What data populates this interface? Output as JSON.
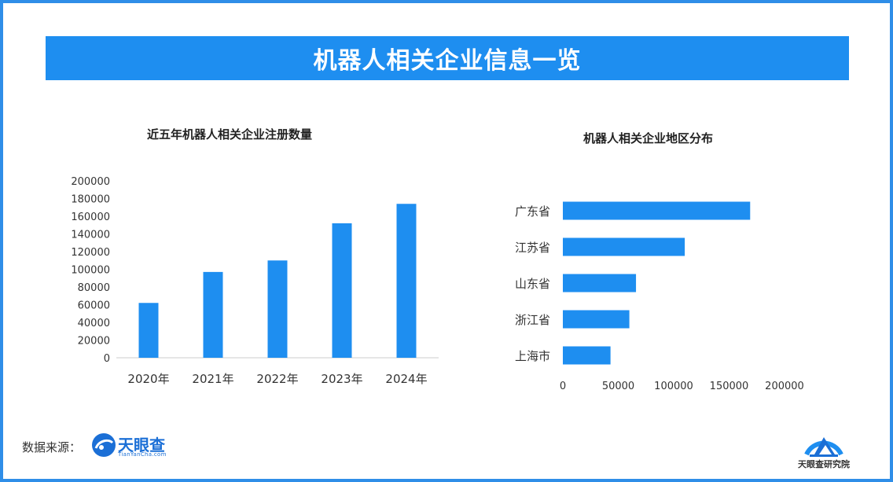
{
  "header": {
    "title": "机器人相关企业信息一览"
  },
  "chart_data": [
    {
      "type": "bar",
      "title": "近五年机器人相关企业注册数量",
      "categories": [
        "2020年",
        "2021年",
        "2022年",
        "2023年",
        "2024年"
      ],
      "values": [
        62000,
        97000,
        110000,
        152000,
        174000
      ],
      "ylim": [
        0,
        200000
      ],
      "yticks": [
        0,
        20000,
        40000,
        60000,
        80000,
        100000,
        120000,
        140000,
        160000,
        180000,
        200000
      ],
      "grid": false,
      "color": "#1e8ef0"
    },
    {
      "type": "bar",
      "orientation": "horizontal",
      "title": "机器人相关企业地区分布",
      "categories": [
        "广东省",
        "江苏省",
        "山东省",
        "浙江省",
        "上海市"
      ],
      "values": [
        169000,
        110000,
        66000,
        60000,
        43000
      ],
      "xlim": [
        0,
        200000
      ],
      "xticks": [
        0,
        50000,
        100000,
        150000,
        200000
      ],
      "grid": false,
      "color": "#1e8ef0"
    }
  ],
  "footer": {
    "source_label": "数据来源：",
    "source_logo": "天眼查",
    "source_logo_sub": "TianYanCha.com",
    "institute": "天眼查研究院",
    "institute_icon": "building-arc-icon"
  }
}
